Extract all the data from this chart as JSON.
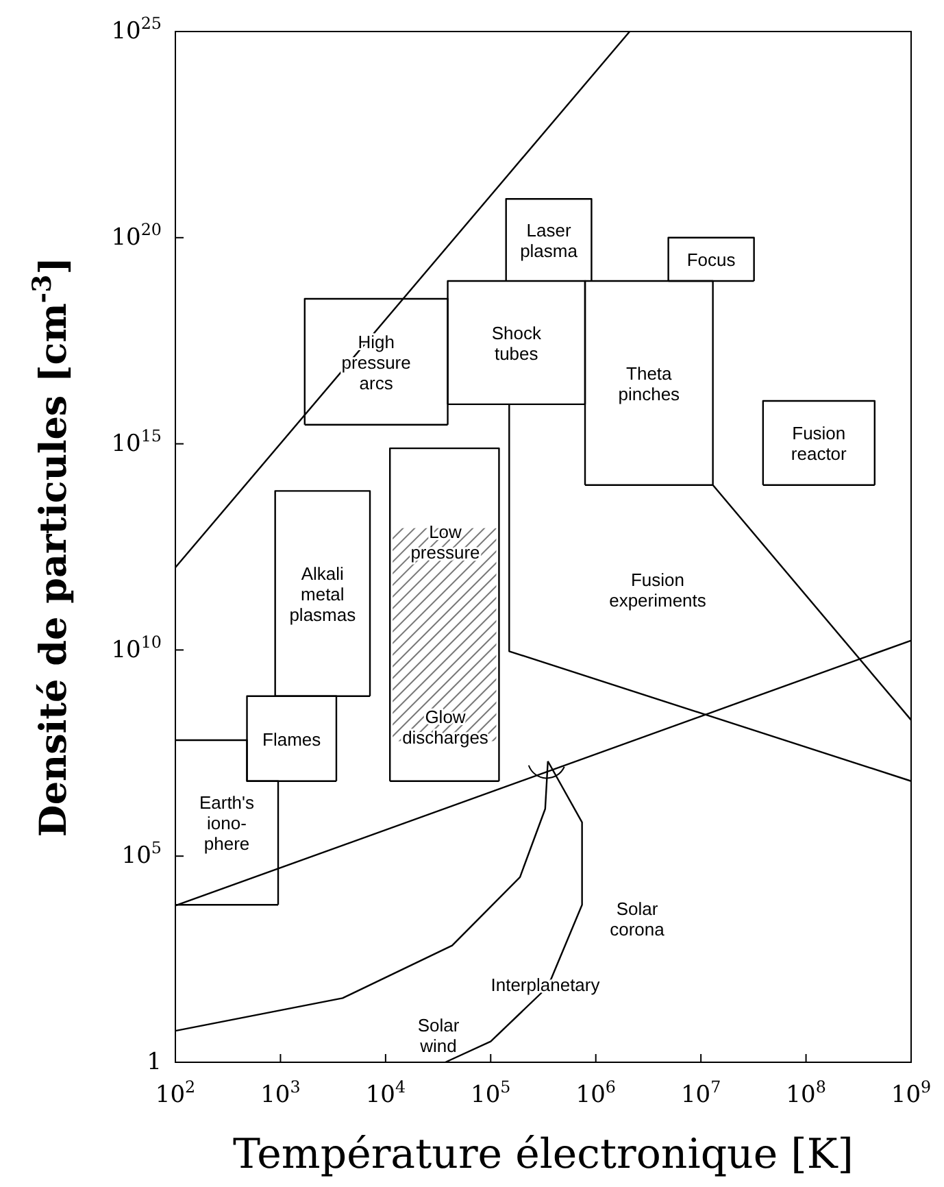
{
  "chart_data": {
    "type": "line",
    "log": "xy",
    "xlabel": "Température électronique [K]",
    "ylabel": "Densité de particules [cm$^{-3}$]",
    "xlim": [
      100,
      1000000000
    ],
    "ylim": [
      1,
      1e+25
    ],
    "xticks": [
      {
        "value": 100,
        "label": "10$^{2}$"
      },
      {
        "value": 1000,
        "label": "10$^{3}$"
      },
      {
        "value": 10000,
        "label": "10$^{4}$"
      },
      {
        "value": 100000,
        "label": "10$^{5}$"
      },
      {
        "value": 1000000,
        "label": "10$^{6}$"
      },
      {
        "value": 10000000,
        "label": "10$^{7}$"
      },
      {
        "value": 100000000,
        "label": "10$^{8}$"
      },
      {
        "value": 1000000000,
        "label": "10$^{9}$"
      }
    ],
    "yticks": [
      1,
      {
        "value": 100000,
        "label": "10$^{5}$"
      },
      {
        "value": 10000000000.0,
        "label": "10$^{10}$"
      },
      {
        "value": 1000000000000000.0,
        "label": "10$^{15}$"
      },
      {
        "value": 1e+20,
        "label": "10$^{20}$"
      },
      {
        "value": 1e+25,
        "label": "10$^{25}$"
      }
    ],
    "grid": false,
    "series": [
      {
        "color": "#000000",
        "x": [
          100,
          2100000
        ],
        "values": [
          1000000000000.0,
          1e+25
        ]
      },
      {
        "color": "#000000",
        "x": [
          100,
          1000000000
        ],
        "values": [
          6300,
          17000000000.0
        ]
      },
      {
        "name": "High\npressure\narcs",
        "color": "#000000",
        "x": [
          1700,
          1700,
          39000,
          39000
        ],
        "values": [
          2900000000000000.0,
          3.3e+18,
          3.3e+18,
          2900000000000000.0
        ]
      },
      {
        "name": "Shock\ntubes",
        "color": "#000000",
        "x": [
          39000,
          39000,
          790000,
          790000
        ],
        "values": [
          9100000000000000.0,
          8.9e+18,
          8.9e+18,
          9100000000000000.0
        ]
      },
      {
        "name": "Laser\nplasma",
        "color": "#000000",
        "x": [
          140000,
          140000,
          910000,
          910000
        ],
        "values": [
          8.9e+18,
          8.7e+20,
          8.7e+20,
          8.9e+18
        ]
      },
      {
        "name": "Focus",
        "color": "#000000",
        "x": [
          4900000,
          4900000,
          32000000,
          32000000
        ],
        "values": [
          8.9e+18,
          1e+20,
          1e+20,
          8.9e+18
        ]
      },
      {
        "name": "Theta\npinches",
        "color": "#000000",
        "x": [
          790000,
          790000,
          13000000,
          13000000
        ],
        "values": [
          100000000000000.0,
          8.9e+18,
          8.9e+18,
          100000000000000.0
        ]
      },
      {
        "name": "Fusion\nreactor",
        "color": "#000000",
        "x": [
          39000000,
          39000000,
          450000000,
          450000000
        ],
        "values": [
          100000000000000.0,
          1.1e+16,
          1.1e+16,
          100000000000000.0
        ]
      },
      {
        "name": "Alkali\nmetal\nplasmas",
        "color": "#000000",
        "x": [
          890,
          890,
          7100,
          7100
        ],
        "values": [
          760000000.0,
          72000000000000.0,
          72000000000000.0,
          760000000.0
        ]
      },
      {
        "color": "#000000",
        "x": [
          11000,
          11000,
          120000,
          120000
        ],
        "values": [
          6600000,
          780000000000000.0,
          780000000000000.0,
          6600000
        ]
      },
      {
        "name": "Flames",
        "color": "#000000",
        "x": [
          480,
          480,
          3400,
          3400
        ],
        "values": [
          6600000,
          760000000.0,
          760000000.0,
          6600000
        ]
      },
      {
        "name": "Earth's\niono-\nphere",
        "color": "#000000",
        "x": [
          100,
          480,
          480,
          950,
          950
        ],
        "values": [
          65000000.0,
          65000000.0,
          6600000,
          6600000,
          6600
        ]
      },
      {
        "color": "#000000",
        "x": [
          1700,
          39000
        ],
        "values": [
          2900000000000000.0,
          2900000000000000.0
        ]
      },
      {
        "color": "#000000",
        "x": [
          39000,
          790000
        ],
        "values": [
          9100000000000000.0,
          9100000000000000.0
        ]
      },
      {
        "color": "#000000",
        "x": [
          4900000,
          32000000
        ],
        "values": [
          8.9e+18,
          8.9e+18
        ]
      },
      {
        "color": "#000000",
        "x": [
          790000,
          13000000
        ],
        "values": [
          100000000000000.0,
          100000000000000.0
        ]
      },
      {
        "color": "#000000",
        "x": [
          39000000,
          450000000
        ],
        "values": [
          100000000000000.0,
          100000000000000.0
        ]
      },
      {
        "color": "#000000",
        "x": [
          890,
          7100
        ],
        "values": [
          760000000.0,
          760000000.0
        ]
      },
      {
        "color": "#000000",
        "x": [
          11000,
          120000
        ],
        "values": [
          6600000,
          6600000
        ]
      },
      {
        "color": "#000000",
        "x": [
          480,
          3400
        ],
        "values": [
          6600000,
          6600000
        ]
      },
      {
        "color": "#000000",
        "x": [
          100,
          950
        ],
        "values": [
          6600,
          6600
        ]
      },
      {
        "color": "#000000",
        "x": [
          150000,
          150000,
          1000000000
        ],
        "values": [
          9100000000000000.0,
          9300000000.0,
          6600000
        ]
      },
      {
        "color": "#000000",
        "x": [
          13000000,
          1000000000
        ],
        "values": [
          100000000000000.0,
          200000000.0
        ]
      },
      {
        "color": "#000000",
        "x": [
          100,
          3900,
          43000,
          190000,
          330000,
          350000
        ],
        "values": [
          5.8,
          36,
          680,
          31000,
          1400000,
          20000000.0
        ]
      },
      {
        "color": "#000000",
        "x": [
          37000,
          100000,
          350000,
          740000,
          740000,
          350000
        ],
        "values": [
          1,
          3.2,
          68,
          6600,
          660000,
          20000000.0
        ]
      }
    ],
    "annotations": [
      "Low\npressure",
      "Glow\ndischarges",
      "Fusion\nexperiments",
      "Solar\ncorona",
      "Interplanetary",
      "Solar\nwind"
    ]
  }
}
